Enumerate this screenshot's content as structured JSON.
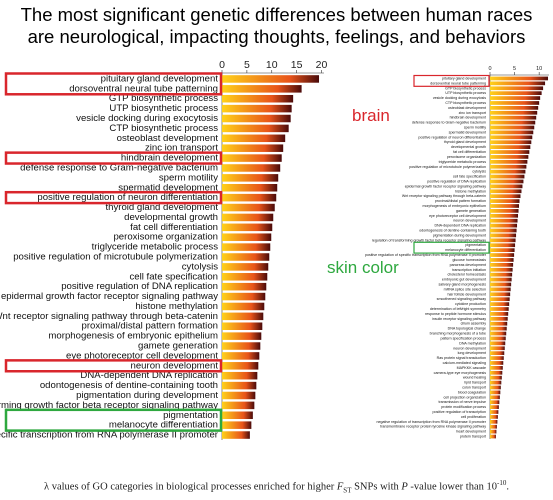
{
  "headline": {
    "line1": "The most significant genetic differences between human races",
    "line2": "are neurological, impacting thoughts, feelings, and behaviors"
  },
  "annotations": {
    "brain": "brain",
    "skin": "skin color"
  },
  "caption": {
    "prefix": "λ values of GO categories in biological processes enriched for higher ",
    "fst_f": "F",
    "fst_sub": "ST",
    "mid": " SNPs with ",
    "p": "P",
    "suffix": " -value lower than 10",
    "exp": "-10",
    "end": "."
  },
  "colors": {
    "highlight_red": "#d9262c",
    "highlight_green": "#2ea83f",
    "bar_dark": "#4a0a0a",
    "bar_mid": "#e8541a",
    "bar_light": "#ffd21a"
  },
  "chart_data": [
    {
      "type": "bar",
      "orientation": "horizontal",
      "title": "",
      "xlabel": "",
      "ylabel": "",
      "xlim": [
        0,
        20.5
      ],
      "x_ticks": [
        0,
        5,
        10,
        15,
        20
      ],
      "grid": false,
      "categories": [
        "pituitary gland development",
        "dorsoventral neural tube patterning",
        "GTP biosynthetic process",
        "UTP biosynthetic process",
        "vesicle docking during exocytosis",
        "CTP biosynthetic process",
        "osteoblast development",
        "zinc ion transport",
        "hindbrain development",
        "defense response to Gram-negative bacterium",
        "sperm motility",
        "spermatid development",
        "positive regulation of neuron differentiation",
        "thyroid gland development",
        "developmental growth",
        "fat cell differentiation",
        "peroxisome organization",
        "triglyceride metabolic process",
        "positive regulation of microtubule polymerization",
        "cytolysis",
        "cell fate specification",
        "positive regulation of DNA replication",
        "epidermal growth factor receptor signaling pathway",
        "histone methylation",
        "Wnt receptor signaling pathway through beta-catenin",
        "proximal/distal pattern formation",
        "morphogenesis of embryonic epithelium",
        "gamete generation",
        "eye photoreceptor cell development",
        "neuron development",
        "DNA-dependent DNA replication",
        "odontogenesis of dentine-containing tooth",
        "pigmentation during development",
        "forming growth factor beta receptor signaling pathway",
        "pigmentation",
        "melanocyte differentiation",
        "pecific transcription from RNA polymerase II promoter"
      ],
      "values": [
        19.5,
        16.0,
        14.3,
        14.0,
        13.8,
        13.4,
        12.7,
        12.3,
        12.0,
        11.7,
        11.3,
        11.1,
        10.9,
        10.6,
        10.3,
        10.1,
        9.9,
        9.7,
        9.5,
        9.3,
        9.1,
        8.9,
        8.7,
        8.5,
        8.3,
        8.1,
        7.9,
        7.7,
        7.5,
        7.3,
        7.1,
        6.9,
        6.7,
        6.5,
        6.2,
        5.9,
        5.6
      ],
      "highlighted_red": [
        "pituitary gland development",
        "dorsoventral neural tube patterning",
        "hindbrain development",
        "positive regulation of neuron differentiation",
        "neuron development"
      ],
      "highlighted_green": [
        "pigmentation",
        "melanocyte differentiation"
      ]
    },
    {
      "type": "bar",
      "orientation": "horizontal",
      "title": "",
      "xlabel": "",
      "ylabel": "",
      "xlim": [
        0,
        12
      ],
      "x_ticks": [
        0,
        5,
        10
      ],
      "grid": false,
      "categories": [
        "pituitary gland development",
        "dorsoventral neural tube patterning",
        "GTP biosynthetic process",
        "UTP biosynthetic process",
        "vesicle docking during exocytosis",
        "CTP biosynthetic process",
        "osteoblast development",
        "zinc ion transport",
        "hindbrain development",
        "defense response to Gram-negative bacterium",
        "sperm motility",
        "spermatid development",
        "positive regulation of neuron differentiation",
        "thyroid gland development",
        "developmental growth",
        "fat cell differentiation",
        "peroxisome organization",
        "triglyceride metabolic process",
        "positive regulation of microtubule polymerization",
        "cytolysis",
        "cell fate specification",
        "positive regulation of DNA replication",
        "epidermal growth factor receptor signaling pathway",
        "histone methylation",
        "Wnt receptor signaling pathway through beta-catenin",
        "proximal/distal pattern formation",
        "morphogenesis of embryonic epithelium",
        "gamete generation",
        "eye photoreceptor cell development",
        "neuron development",
        "DNA-dependent DNA replication",
        "odontogenesis of dentine-containing tooth",
        "pigmentation during development",
        "regulation of transforming growth factor beta receptor signaling pathway",
        "pigmentation",
        "melanocyte differentiation",
        "positive regulation of specific transcription from RNA polymerase II promoter",
        "glucose homeostasis",
        "pancreas development",
        "transcription initiation",
        "cholesterol homeostasis",
        "embryonic gut development",
        "salivary gland morphogenesis",
        "mRNA splice site selection",
        "hair follicle development",
        "smoothened signaling pathway",
        "cytokine production",
        "determination of left/right symmetry",
        "response to peptide hormone stimulus",
        "insulin receptor signaling pathway",
        "cilium assembly",
        "DNA topological change",
        "branching morphogenesis of a tube",
        "pattern specification process",
        "DNA methylation",
        "neuron development",
        "lung development",
        "Ras protein signal transduction",
        "calcium-mediated signaling",
        "MAPKKK cascade",
        "camera-type eye morphogenesis",
        "wound healing",
        "lipid transport",
        "colon transport",
        "blood coagulation",
        "cell projection organization",
        "transmission of nerve impulse",
        "protein modification process",
        "positive regulation of transcription",
        "cell proliferation",
        "negative regulation of transcription from RNA polymerase II promoter",
        "transmembrane receptor protein tyrosine kinase signaling pathway",
        "heart development",
        "protein transport"
      ],
      "values": [
        11.8,
        11.2,
        10.8,
        10.5,
        10.2,
        10.0,
        9.8,
        9.6,
        9.4,
        9.2,
        9.0,
        8.8,
        8.6,
        8.4,
        8.2,
        8.0,
        7.8,
        7.6,
        7.4,
        7.2,
        7.0,
        6.8,
        6.6,
        6.4,
        6.2,
        6.0,
        5.9,
        5.8,
        5.7,
        5.6,
        5.5,
        5.4,
        5.3,
        5.2,
        5.1,
        5.0,
        4.9,
        4.8,
        4.7,
        4.6,
        4.5,
        4.4,
        4.3,
        4.2,
        4.1,
        4.0,
        3.9,
        3.8,
        3.7,
        3.6,
        3.5,
        3.4,
        3.3,
        3.2,
        3.1,
        3.0,
        2.9,
        2.8,
        2.7,
        2.6,
        2.5,
        2.4,
        2.3,
        2.2,
        2.1,
        2.0,
        1.9,
        1.8,
        1.7,
        1.6,
        1.5,
        1.4,
        1.3,
        1.2
      ],
      "highlighted_red": [
        "pituitary gland development",
        "dorsoventral neural tube patterning"
      ],
      "highlighted_green": [
        "pigmentation",
        "melanocyte differentiation"
      ]
    }
  ]
}
